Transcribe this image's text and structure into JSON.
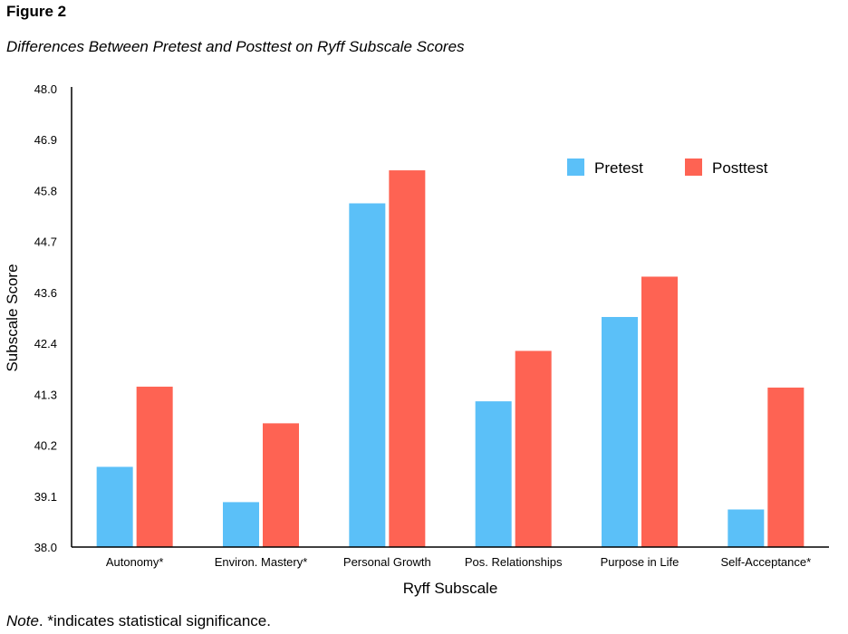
{
  "figure_label": "Figure 2",
  "figure_title": "Differences Between Pretest and Posttest on Ryff Subscale Scores",
  "note": {
    "prefix": "Note",
    "text": ". *indicates statistical significance."
  },
  "colors": {
    "pretest": "#5bc0f8",
    "posttest": "#fe6353"
  },
  "chart_data": {
    "type": "bar",
    "xlabel": "Ryff Subscale",
    "ylabel": "Subscale Score",
    "ylim": [
      38.0,
      48.0
    ],
    "yticks": [
      "38.0",
      "39.1",
      "40.2",
      "41.3",
      "42.4",
      "43.6",
      "44.7",
      "45.8",
      "46.9",
      "48.0"
    ],
    "categories": [
      "Autonomy*",
      "Environ. Mastery*",
      "Personal Growth",
      "Pos. Relationships",
      "Purpose in Life",
      "Self-Acceptance*"
    ],
    "series": [
      {
        "name": "Pretest",
        "values": [
          39.75,
          38.98,
          45.5,
          41.18,
          43.02,
          38.82
        ]
      },
      {
        "name": "Posttest",
        "values": [
          41.5,
          40.7,
          46.22,
          42.28,
          43.9,
          41.48
        ]
      }
    ],
    "legend_position": "top-right",
    "grid": false
  }
}
